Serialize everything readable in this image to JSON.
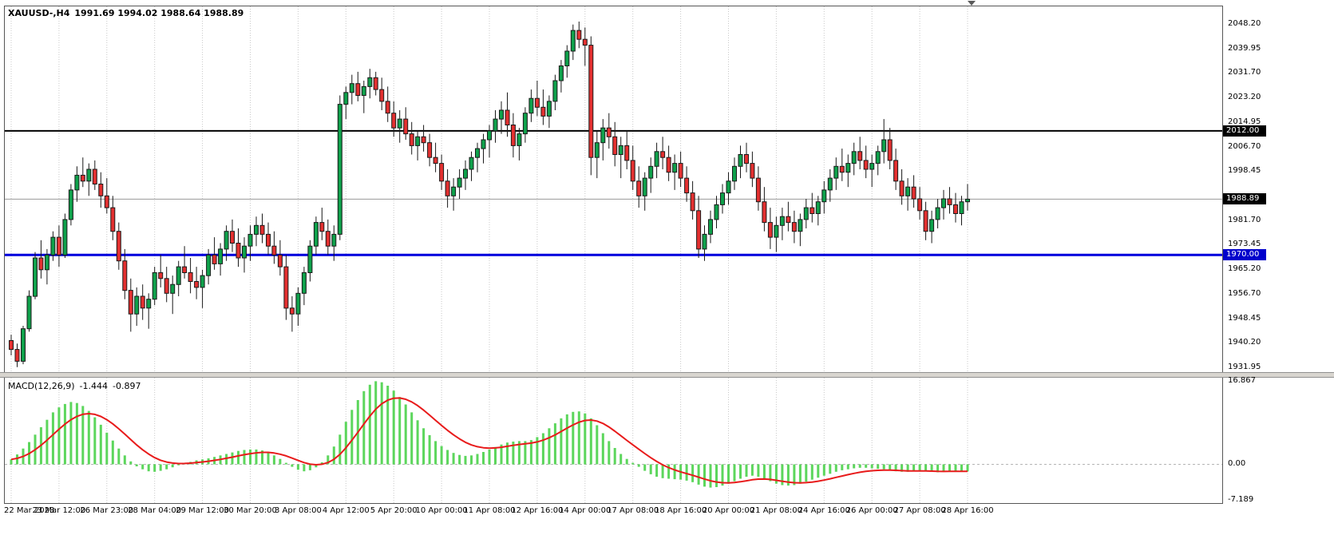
{
  "header": {
    "symbol_period": "XAUUSD-,H4",
    "ohlc": "1991.69 1994.02 1988.64 1988.89"
  },
  "macd_panel": {
    "label": "MACD(12,26,9)",
    "value_main": "-1.444",
    "value_signal": "-0.897"
  },
  "price_scale": {
    "labels": [
      {
        "text": "2048.20",
        "value": 2048.2
      },
      {
        "text": "2039.95",
        "value": 2039.95
      },
      {
        "text": "2031.70",
        "value": 2031.7
      },
      {
        "text": "2023.20",
        "value": 2023.2
      },
      {
        "text": "2014.95",
        "value": 2014.95
      },
      {
        "text": "2006.70",
        "value": 2006.7
      },
      {
        "text": "1998.45",
        "value": 1998.45
      },
      {
        "text": "1981.70",
        "value": 1981.7
      },
      {
        "text": "1973.45",
        "value": 1973.45
      },
      {
        "text": "1965.20",
        "value": 1965.2
      },
      {
        "text": "1956.70",
        "value": 1956.7
      },
      {
        "text": "1948.45",
        "value": 1948.45
      },
      {
        "text": "1940.20",
        "value": 1940.2
      },
      {
        "text": "1931.95",
        "value": 1931.95
      }
    ],
    "badges": [
      {
        "text": "2012.00",
        "value": 2012.0,
        "bg": "#000000"
      },
      {
        "text": "1988.89",
        "value": 1988.89,
        "bg": "#000000"
      },
      {
        "text": "1970.00",
        "value": 1970.0,
        "bg": "#0000cc"
      }
    ]
  },
  "macd_scale": {
    "labels": [
      {
        "text": "16.867",
        "value": 16.867
      },
      {
        "text": "0.00",
        "value": 0
      },
      {
        "text": "-7.189",
        "value": -7.189
      }
    ]
  },
  "time_axis": {
    "labels": [
      "22 Mar 2023",
      "23 Mar 12:00",
      "26 Mar 23:00",
      "28 Mar 04:00",
      "29 Mar 12:00",
      "30 Mar 20:00",
      "3 Apr 08:00",
      "4 Apr 12:00",
      "5 Apr 20:00",
      "10 Apr 00:00",
      "11 Apr 08:00",
      "12 Apr 16:00",
      "14 Apr 00:00",
      "17 Apr 08:00",
      "18 Apr 16:00",
      "20 Apr 00:00",
      "21 Apr 08:00",
      "24 Apr 16:00",
      "26 Apr 00:00",
      "27 Apr 08:00",
      "28 Apr 16:00"
    ]
  },
  "colors": {
    "bull": "#0fa14b",
    "bear": "#e33030",
    "candle_outline": "#1a1a1a",
    "macd_hist": "#5cd65c",
    "macd_signal": "#e81b1b",
    "current_price_line": "#9a9a9a",
    "grid": "#c8c8c8",
    "zero_line": "#b4b4b4",
    "badge_fg": "#ffffff"
  },
  "chart_data": {
    "type": "candlestick",
    "title": "XAUUSD- H4 with MACD(12,26,9)",
    "price_ylim": [
      1931.95,
      2048.2
    ],
    "bars_per_gridline": 8,
    "current_price": 1988.89,
    "hlines": [
      {
        "price": 2012.0,
        "label": "2012.00",
        "color": "#000000",
        "width": 2
      },
      {
        "price": 1970.0,
        "label": "1970.00",
        "color": "#0000dd",
        "width": 3
      }
    ],
    "candles_ohlc": [
      [
        1941,
        1943,
        1936,
        1938
      ],
      [
        1938,
        1940,
        1932,
        1934
      ],
      [
        1934,
        1946,
        1933,
        1945
      ],
      [
        1945,
        1958,
        1944,
        1956
      ],
      [
        1956,
        1971,
        1955,
        1969
      ],
      [
        1969,
        1975,
        1962,
        1965
      ],
      [
        1965,
        1972,
        1960,
        1970
      ],
      [
        1970,
        1978,
        1968,
        1976
      ],
      [
        1976,
        1980,
        1966,
        1970
      ],
      [
        1970,
        1984,
        1969,
        1982
      ],
      [
        1982,
        1994,
        1980,
        1992
      ],
      [
        1992,
        2000,
        1988,
        1997
      ],
      [
        1997,
        2003,
        1993,
        1995
      ],
      [
        1995,
        2001,
        1990,
        1999
      ],
      [
        1999,
        2002,
        1992,
        1994
      ],
      [
        1994,
        1998,
        1986,
        1990
      ],
      [
        1990,
        1996,
        1984,
        1986
      ],
      [
        1986,
        1990,
        1975,
        1978
      ],
      [
        1978,
        1981,
        1965,
        1968
      ],
      [
        1968,
        1972,
        1955,
        1958
      ],
      [
        1958,
        1962,
        1944,
        1950
      ],
      [
        1950,
        1959,
        1946,
        1956
      ],
      [
        1956,
        1960,
        1948,
        1952
      ],
      [
        1952,
        1957,
        1945,
        1955
      ],
      [
        1955,
        1966,
        1953,
        1964
      ],
      [
        1964,
        1970,
        1959,
        1962
      ],
      [
        1962,
        1966,
        1954,
        1957
      ],
      [
        1957,
        1963,
        1950,
        1960
      ],
      [
        1960,
        1968,
        1956,
        1966
      ],
      [
        1966,
        1973,
        1962,
        1964
      ],
      [
        1964,
        1969,
        1957,
        1961
      ],
      [
        1961,
        1966,
        1955,
        1959
      ],
      [
        1959,
        1965,
        1952,
        1963
      ],
      [
        1963,
        1972,
        1960,
        1970
      ],
      [
        1970,
        1976,
        1965,
        1967
      ],
      [
        1967,
        1974,
        1963,
        1972
      ],
      [
        1972,
        1980,
        1968,
        1978
      ],
      [
        1978,
        1982,
        1971,
        1974
      ],
      [
        1974,
        1979,
        1966,
        1969
      ],
      [
        1969,
        1976,
        1964,
        1973
      ],
      [
        1973,
        1980,
        1968,
        1977
      ],
      [
        1977,
        1983,
        1973,
        1980
      ],
      [
        1980,
        1984,
        1974,
        1977
      ],
      [
        1977,
        1981,
        1970,
        1973
      ],
      [
        1973,
        1978,
        1967,
        1970
      ],
      [
        1970,
        1975,
        1963,
        1966
      ],
      [
        1966,
        1970,
        1948,
        1952
      ],
      [
        1952,
        1956,
        1944,
        1950
      ],
      [
        1950,
        1959,
        1946,
        1957
      ],
      [
        1957,
        1966,
        1953,
        1964
      ],
      [
        1964,
        1975,
        1961,
        1973
      ],
      [
        1973,
        1983,
        1970,
        1981
      ],
      [
        1981,
        1986,
        1975,
        1978
      ],
      [
        1978,
        1982,
        1970,
        1973
      ],
      [
        1973,
        1980,
        1968,
        1977
      ],
      [
        1977,
        2024,
        1975,
        2021
      ],
      [
        2021,
        2027,
        2016,
        2025
      ],
      [
        2025,
        2031,
        2021,
        2028
      ],
      [
        2028,
        2032,
        2022,
        2024
      ],
      [
        2024,
        2029,
        2018,
        2027
      ],
      [
        2027,
        2033,
        2023,
        2030
      ],
      [
        2030,
        2032,
        2024,
        2026
      ],
      [
        2026,
        2030,
        2019,
        2022
      ],
      [
        2022,
        2027,
        2015,
        2018
      ],
      [
        2018,
        2022,
        2010,
        2013
      ],
      [
        2013,
        2019,
        2008,
        2016
      ],
      [
        2016,
        2020,
        2009,
        2011
      ],
      [
        2011,
        2015,
        2004,
        2007
      ],
      [
        2007,
        2012,
        2002,
        2010
      ],
      [
        2010,
        2014,
        2005,
        2008
      ],
      [
        2008,
        2011,
        2000,
        2003
      ],
      [
        2003,
        2008,
        1998,
        2001
      ],
      [
        2001,
        2004,
        1992,
        1995
      ],
      [
        1995,
        1999,
        1986,
        1990
      ],
      [
        1990,
        1996,
        1985,
        1993
      ],
      [
        1993,
        1999,
        1989,
        1996
      ],
      [
        1996,
        2002,
        1992,
        1999
      ],
      [
        1999,
        2005,
        1995,
        2003
      ],
      [
        2003,
        2008,
        1998,
        2006
      ],
      [
        2006,
        2011,
        2001,
        2009
      ],
      [
        2009,
        2014,
        2003,
        2012
      ],
      [
        2012,
        2019,
        2008,
        2016
      ],
      [
        2016,
        2022,
        2011,
        2019
      ],
      [
        2019,
        2025,
        2010,
        2014
      ],
      [
        2014,
        2018,
        2003,
        2007
      ],
      [
        2007,
        2013,
        2002,
        2011
      ],
      [
        2011,
        2020,
        2008,
        2018
      ],
      [
        2018,
        2026,
        2015,
        2023
      ],
      [
        2023,
        2029,
        2017,
        2020
      ],
      [
        2020,
        2026,
        2014,
        2017
      ],
      [
        2017,
        2024,
        2013,
        2022
      ],
      [
        2022,
        2031,
        2019,
        2029
      ],
      [
        2029,
        2036,
        2025,
        2034
      ],
      [
        2034,
        2041,
        2030,
        2039
      ],
      [
        2039,
        2048,
        2036,
        2046
      ],
      [
        2046,
        2049,
        2040,
        2043
      ],
      [
        2043,
        2047,
        2034,
        2041
      ],
      [
        2041,
        2044,
        1997,
        2003
      ],
      [
        2003,
        2012,
        1996,
        2008
      ],
      [
        2008,
        2016,
        2002,
        2013
      ],
      [
        2013,
        2018,
        2006,
        2010
      ],
      [
        2010,
        2015,
        2000,
        2004
      ],
      [
        2004,
        2010,
        1996,
        2007
      ],
      [
        2007,
        2012,
        1999,
        2002
      ],
      [
        2002,
        2007,
        1992,
        1995
      ],
      [
        1995,
        2000,
        1986,
        1990
      ],
      [
        1990,
        1998,
        1985,
        1996
      ],
      [
        1996,
        2003,
        1991,
        2000
      ],
      [
        2000,
        2008,
        1996,
        2005
      ],
      [
        2005,
        2010,
        1999,
        2003
      ],
      [
        2003,
        2007,
        1995,
        1998
      ],
      [
        1998,
        2004,
        1992,
        2001
      ],
      [
        2001,
        2005,
        1993,
        1996
      ],
      [
        1996,
        2000,
        1988,
        1991
      ],
      [
        1991,
        1995,
        1982,
        1985
      ],
      [
        1985,
        1990,
        1969,
        1972
      ],
      [
        1972,
        1980,
        1968,
        1977
      ],
      [
        1977,
        1985,
        1974,
        1982
      ],
      [
        1982,
        1990,
        1979,
        1987
      ],
      [
        1987,
        1994,
        1984,
        1991
      ],
      [
        1991,
        1998,
        1987,
        1995
      ],
      [
        1995,
        2003,
        1992,
        2000
      ],
      [
        2000,
        2007,
        1996,
        2004
      ],
      [
        2004,
        2008,
        1998,
        2001
      ],
      [
        2001,
        2005,
        1993,
        1996
      ],
      [
        1996,
        2000,
        1985,
        1988
      ],
      [
        1988,
        1993,
        1978,
        1981
      ],
      [
        1981,
        1986,
        1972,
        1976
      ],
      [
        1976,
        1983,
        1971,
        1980
      ],
      [
        1980,
        1986,
        1975,
        1983
      ],
      [
        1983,
        1988,
        1978,
        1981
      ],
      [
        1981,
        1985,
        1974,
        1978
      ],
      [
        1978,
        1984,
        1973,
        1982
      ],
      [
        1982,
        1989,
        1979,
        1986
      ],
      [
        1986,
        1991,
        1981,
        1984
      ],
      [
        1984,
        1990,
        1980,
        1988
      ],
      [
        1988,
        1995,
        1984,
        1992
      ],
      [
        1992,
        1999,
        1988,
        1996
      ],
      [
        1996,
        2003,
        1992,
        2000
      ],
      [
        2000,
        2006,
        1995,
        1998
      ],
      [
        1998,
        2004,
        1993,
        2001
      ],
      [
        2001,
        2008,
        1997,
        2005
      ],
      [
        2005,
        2010,
        1999,
        2002
      ],
      [
        2002,
        2007,
        1996,
        1999
      ],
      [
        1999,
        2004,
        1993,
        2001
      ],
      [
        2001,
        2007,
        1997,
        2005
      ],
      [
        2005,
        2016,
        2001,
        2009
      ],
      [
        2009,
        2013,
        1999,
        2002
      ],
      [
        2002,
        2006,
        1992,
        1995
      ],
      [
        1995,
        1999,
        1987,
        1990
      ],
      [
        1990,
        1996,
        1985,
        1993
      ],
      [
        1993,
        1997,
        1986,
        1989
      ],
      [
        1989,
        1993,
        1982,
        1985
      ],
      [
        1985,
        1988,
        1975,
        1978
      ],
      [
        1978,
        1985,
        1974,
        1982
      ],
      [
        1982,
        1989,
        1979,
        1986
      ],
      [
        1986,
        1992,
        1982,
        1989
      ],
      [
        1989,
        1993,
        1984,
        1987
      ],
      [
        1987,
        1991,
        1981,
        1984
      ],
      [
        1984,
        1990,
        1980,
        1988
      ],
      [
        1988,
        1994,
        1985,
        1988.89
      ]
    ],
    "macd": {
      "params": "12,26,9",
      "ylim": [
        -7.189,
        16.867
      ],
      "last_main": -1.444,
      "last_signal": -0.897,
      "histogram": [
        1.0,
        2.0,
        3.2,
        4.5,
        6.0,
        7.5,
        9.0,
        10.5,
        11.5,
        12.2,
        12.6,
        12.4,
        11.8,
        10.8,
        9.5,
        8.0,
        6.4,
        4.8,
        3.2,
        1.8,
        0.6,
        -0.4,
        -1.0,
        -1.4,
        -1.5,
        -1.3,
        -1.0,
        -0.6,
        -0.2,
        0.2,
        0.5,
        0.8,
        1.0,
        1.2,
        1.5,
        1.8,
        2.1,
        2.4,
        2.7,
        2.9,
        3.0,
        3.0,
        2.8,
        2.4,
        1.8,
        1.1,
        0.3,
        -0.5,
        -1.1,
        -1.4,
        -1.2,
        -0.6,
        0.4,
        1.8,
        3.6,
        6.0,
        8.6,
        11.0,
        13.0,
        14.8,
        16.1,
        16.8,
        16.6,
        15.9,
        14.9,
        13.6,
        12.1,
        10.5,
        8.9,
        7.3,
        5.9,
        4.7,
        3.7,
        2.9,
        2.3,
        1.9,
        1.7,
        1.8,
        2.1,
        2.5,
        3.0,
        3.5,
        4.0,
        4.4,
        4.6,
        4.7,
        4.7,
        4.9,
        5.5,
        6.3,
        7.3,
        8.3,
        9.3,
        10.1,
        10.6,
        10.7,
        10.3,
        9.3,
        7.9,
        6.3,
        4.7,
        3.3,
        2.1,
        1.1,
        0.3,
        -0.5,
        -1.3,
        -2.0,
        -2.5,
        -2.8,
        -2.9,
        -3.0,
        -3.1,
        -3.3,
        -3.6,
        -4.1,
        -4.5,
        -4.7,
        -4.6,
        -4.3,
        -3.9,
        -3.4,
        -2.9,
        -2.5,
        -2.3,
        -2.5,
        -2.9,
        -3.4,
        -3.9,
        -4.2,
        -4.3,
        -4.2,
        -3.9,
        -3.5,
        -3.1,
        -2.7,
        -2.3,
        -1.9,
        -1.5,
        -1.2,
        -1.0,
        -0.8,
        -0.7,
        -0.7,
        -0.8,
        -0.9,
        -1.0,
        -1.2,
        -1.4,
        -1.5,
        -1.5,
        -1.4,
        -1.3,
        -1.4,
        -1.5,
        -1.6,
        -1.5,
        -1.4,
        -1.4,
        -1.4,
        -1.444
      ]
    }
  }
}
